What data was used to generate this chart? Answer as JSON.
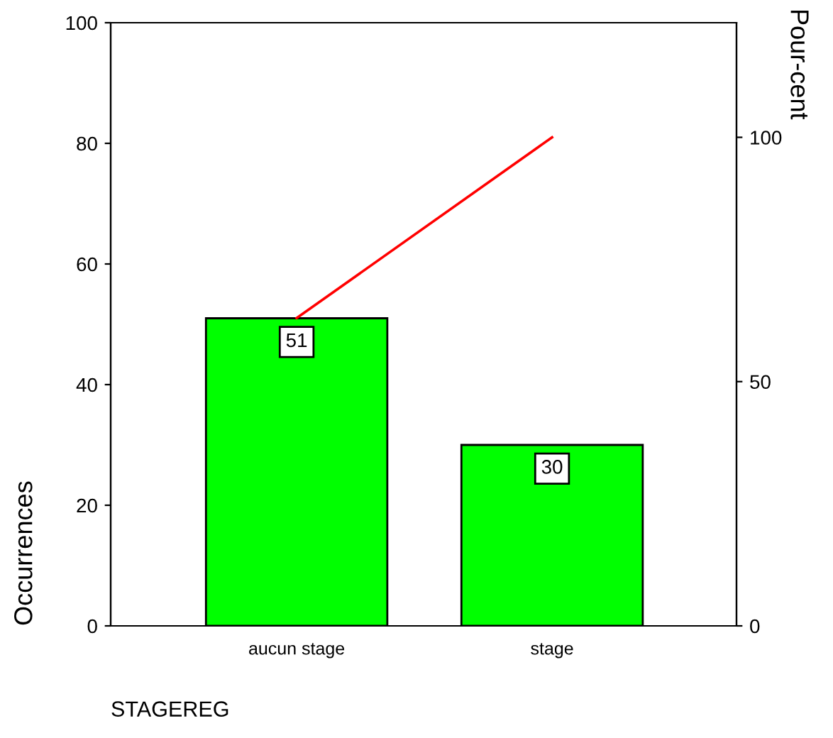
{
  "chart_data": {
    "type": "bar",
    "xlabel": "STAGEREG",
    "ylabel": "Occurrences",
    "y2label": "Pour-cent",
    "categories": [
      "aucun stage",
      "stage"
    ],
    "series": [
      {
        "color": "#00ff00",
        "values": [
          51,
          30
        ],
        "value_labels": [
          "51",
          "30"
        ]
      },
      {
        "type": "line",
        "axis": "y2",
        "color": "#ff0000",
        "values": [
          63,
          100
        ]
      }
    ],
    "ylim": [
      0,
      100
    ],
    "yticks": [
      0,
      20,
      40,
      60,
      80,
      100
    ],
    "y2lim": [
      0,
      123.46
    ],
    "y2ticks": [
      0,
      50,
      100
    ],
    "grid": false,
    "legend": false
  }
}
